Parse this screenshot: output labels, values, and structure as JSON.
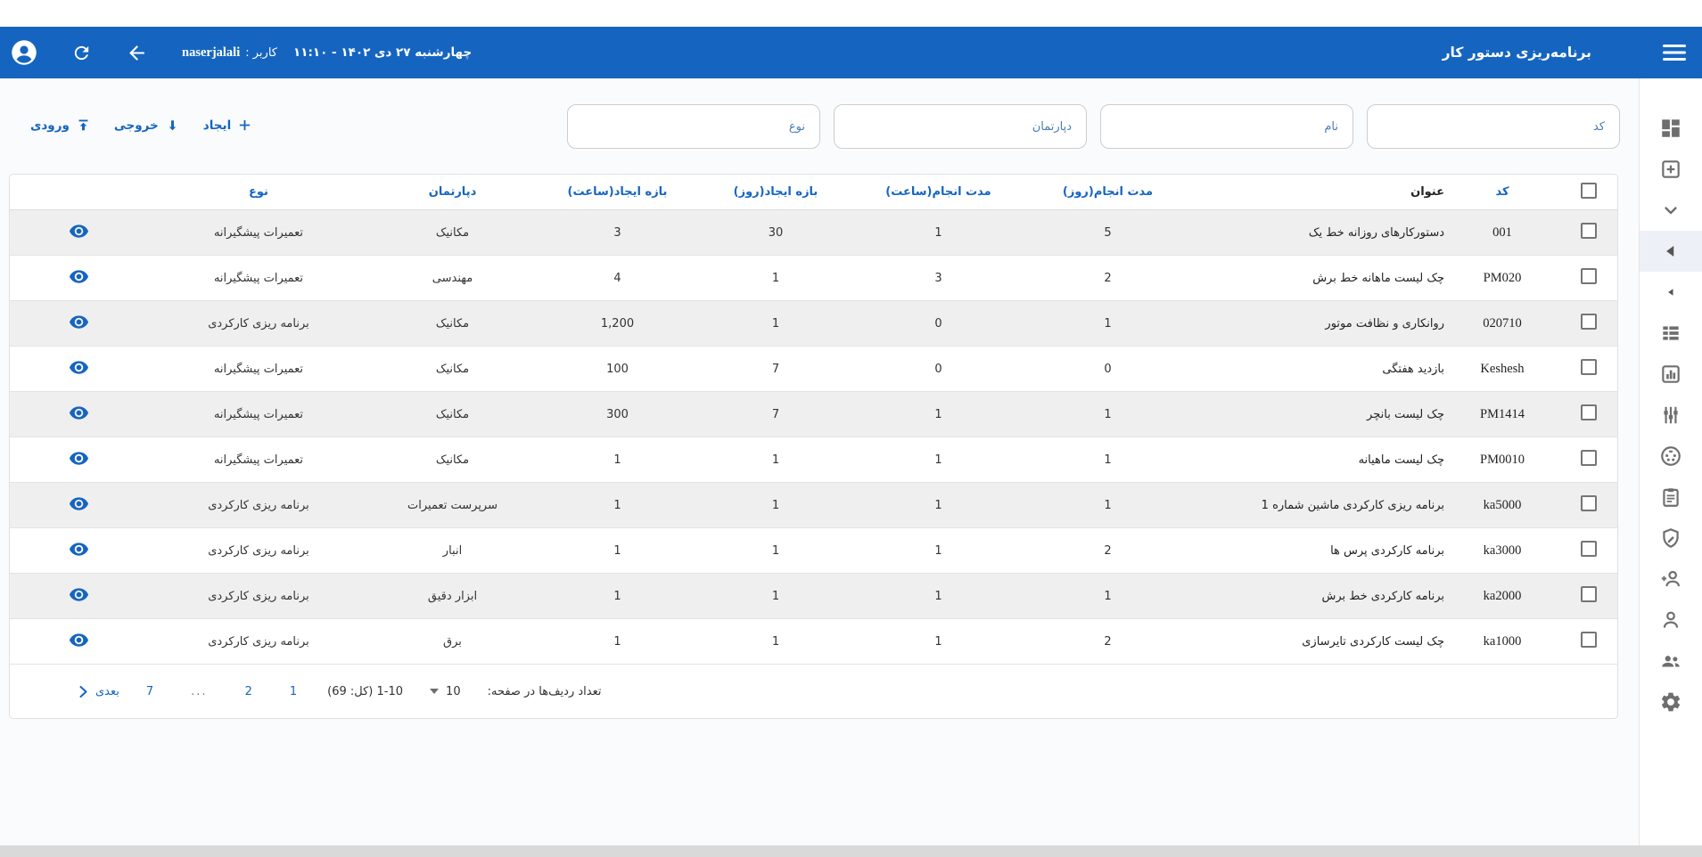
{
  "colors": {
    "topbar_blue": "#1565c0",
    "accent_blue": "#1565c0",
    "filter_label_blue": "#4a7db6",
    "row_stripe": "#efefef",
    "icon_gray": "#6e6e6e",
    "border": "#e0e0e0"
  },
  "topbar": {
    "title": "برنامه‌ریزی دستور کار",
    "user_label": "کاربر :",
    "username": "naserjalali",
    "datetime": "چهارشنبه ۲۷ دی ۱۴۰۲ - ۱۱:۱۰",
    "icons": [
      "hamburger-icon",
      "back-arrow-icon",
      "refresh-icon",
      "account-icon"
    ]
  },
  "toolbar": {
    "create": "ایجاد",
    "export": "خروجی",
    "import": "ورودی"
  },
  "filters": [
    {
      "label": "کد"
    },
    {
      "label": "نام"
    },
    {
      "label": "دپارتمان"
    },
    {
      "label": "نوع"
    }
  ],
  "table": {
    "columns": {
      "code": "کد",
      "title": "عنوان",
      "duration_days": "مدت انجام(روز)",
      "duration_hours": "مدت انجام(ساعت)",
      "create_range_days": "بازه ایجاد(روز)",
      "create_range_hours": "بازه ایجاد(ساعت)",
      "department": "دپارتمان",
      "type": "نوع"
    },
    "rows": [
      {
        "code": "001",
        "title": "دستورکارهای روزانه خط یک",
        "duration_days": "5",
        "duration_hours": "1",
        "create_range_days": "30",
        "create_range_hours": "3",
        "department": "مکانیک",
        "type": "تعمیرات پیشگیرانه"
      },
      {
        "code": "PM020",
        "title": "چک لیست ماهانه خط برش",
        "duration_days": "2",
        "duration_hours": "3",
        "create_range_days": "1",
        "create_range_hours": "4",
        "department": "مهندسی",
        "type": "تعمیرات پیشگیرانه"
      },
      {
        "code": "020710",
        "title": "روانکاری و نظافت موتور",
        "duration_days": "1",
        "duration_hours": "0",
        "create_range_days": "1",
        "create_range_hours": "1,200",
        "department": "مکانیک",
        "type": "برنامه ریزی کارکردی"
      },
      {
        "code": "Keshesh",
        "title": "بازدید هفتگی",
        "duration_days": "0",
        "duration_hours": "0",
        "create_range_days": "7",
        "create_range_hours": "100",
        "department": "مکانیک",
        "type": "تعمیرات پیشگیرانه"
      },
      {
        "code": "PM1414",
        "title": "چک لیست بانچر",
        "duration_days": "1",
        "duration_hours": "1",
        "create_range_days": "7",
        "create_range_hours": "300",
        "department": "مکانیک",
        "type": "تعمیرات پیشگیرانه"
      },
      {
        "code": "PM0010",
        "title": "چک لیست ماهیانه",
        "duration_days": "1",
        "duration_hours": "1",
        "create_range_days": "1",
        "create_range_hours": "1",
        "department": "مکانیک",
        "type": "تعمیرات پیشگیرانه"
      },
      {
        "code": "ka5000",
        "title": "برنامه ریزی کارکردی ماشین شماره 1",
        "duration_days": "1",
        "duration_hours": "1",
        "create_range_days": "1",
        "create_range_hours": "1",
        "department": "سرپرست تعمیرات",
        "type": "برنامه ریزی کارکردی"
      },
      {
        "code": "ka3000",
        "title": "برنامه کارکردی پرس ها",
        "duration_days": "2",
        "duration_hours": "1",
        "create_range_days": "1",
        "create_range_hours": "1",
        "department": "انبار",
        "type": "برنامه ریزی کارکردی"
      },
      {
        "code": "ka2000",
        "title": "برنامه کارکردی خط برش",
        "duration_days": "1",
        "duration_hours": "1",
        "create_range_days": "1",
        "create_range_hours": "1",
        "department": "ابزار دقیق",
        "type": "برنامه ریزی کارکردی"
      },
      {
        "code": "ka1000",
        "title": "چک لیست کارکردی تایرسازی",
        "duration_days": "2",
        "duration_hours": "1",
        "create_range_days": "1",
        "create_range_hours": "1",
        "department": "برق",
        "type": "برنامه ریزی کارکردی"
      }
    ]
  },
  "pagination": {
    "rows_per_page_label": "تعداد ردیف‌ها در صفحه:",
    "page_size": "10",
    "range": "1-10 (کل: 69)",
    "pages": [
      "1",
      "2",
      "...",
      "7"
    ],
    "next_label": "بعدی"
  },
  "sidebar": {
    "active_index": 3,
    "icons": [
      "dashboard-icon",
      "add-box-icon",
      "chevron-down-icon",
      "arrow-left-icon",
      "arrow-left-small-icon",
      "list-icon",
      "bar-chart-icon",
      "sliders-icon",
      "circle-dots-icon",
      "clipboard-icon",
      "shield-edit-icon",
      "person-add-icon",
      "person-icon",
      "people-icon",
      "gear-icon"
    ]
  }
}
